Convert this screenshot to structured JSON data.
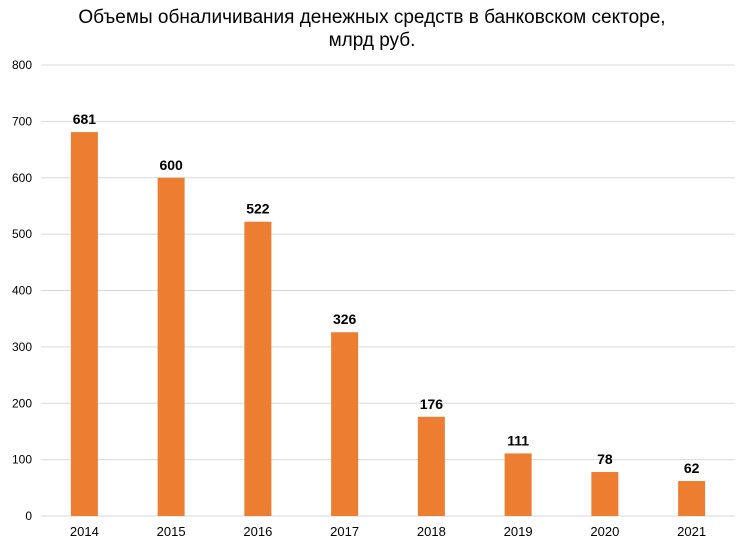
{
  "chart_data": {
    "type": "bar",
    "title_line1": "Объемы обналичивания денежных средств в банковском секторе,",
    "title_line2": "млрд руб.",
    "categories": [
      "2014",
      "2015",
      "2016",
      "2017",
      "2018",
      "2019",
      "2020",
      "2021"
    ],
    "values": [
      681,
      600,
      522,
      326,
      176,
      111,
      78,
      62
    ],
    "ylim": [
      0,
      800
    ],
    "yticks": [
      "0",
      "100",
      "200",
      "300",
      "400",
      "500",
      "600",
      "700",
      "800"
    ],
    "xlabel": "",
    "ylabel": "",
    "grid": true,
    "legend": "none",
    "bar_color": "#ED7D31",
    "grid_color": "#D9D9D9"
  }
}
